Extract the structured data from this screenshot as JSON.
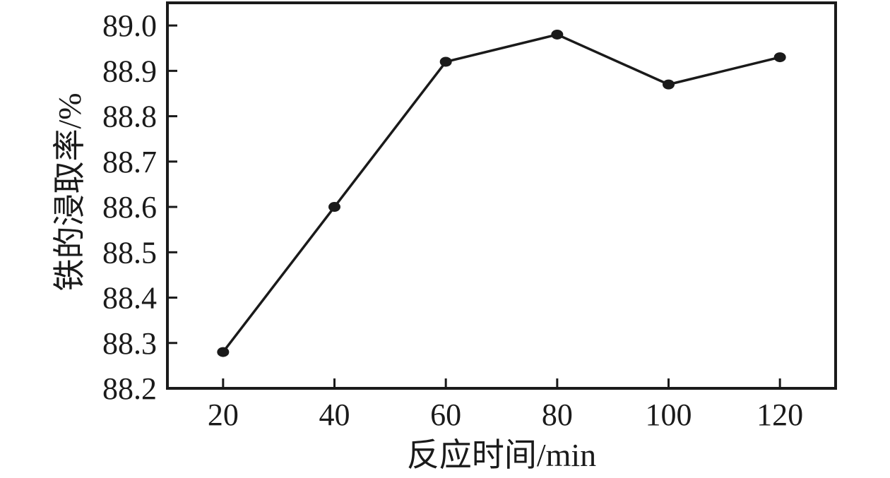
{
  "figure": {
    "background": "#ffffff",
    "ink_color": "#1a1a1a"
  },
  "chart_data": {
    "type": "line",
    "title": "",
    "xlabel": "反应时间/min",
    "ylabel": "铁的浸取率/%",
    "x": [
      20,
      40,
      60,
      80,
      100,
      120
    ],
    "series": [
      {
        "name": "铁的浸取率",
        "values": [
          88.28,
          88.6,
          88.92,
          88.98,
          88.87,
          88.93
        ]
      }
    ],
    "x_ticks": [
      20,
      40,
      60,
      80,
      100,
      120
    ],
    "y_ticks": [
      88.2,
      88.3,
      88.4,
      88.5,
      88.6,
      88.7,
      88.8,
      88.9,
      89.0
    ],
    "y_tick_decimals": 1,
    "xlim": [
      10,
      130
    ],
    "ylim": [
      88.2,
      89.05
    ],
    "grid": false,
    "legend_position": "none",
    "marker": "filled-circle",
    "line_color": "#1a1a1a",
    "marker_color": "#1a1a1a",
    "frame": "full-box",
    "tick_direction": "in"
  }
}
